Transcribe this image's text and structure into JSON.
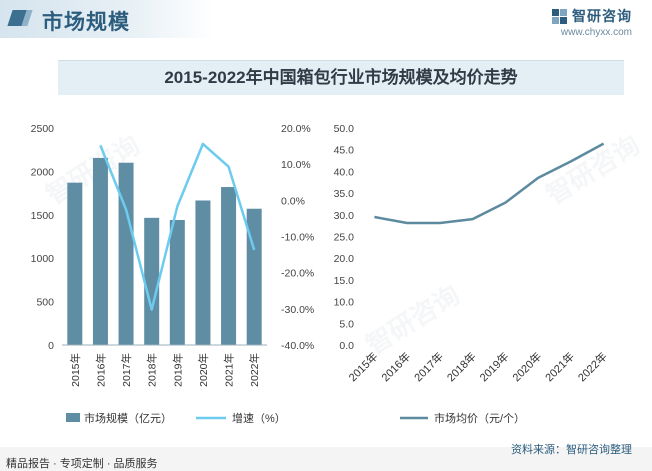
{
  "header": {
    "title": "市场规模",
    "logo_text": "智研咨询",
    "website": "www.chyxx.com"
  },
  "chart_title": "2015-2022年中国箱包行业市场规模及均价走势",
  "footer": {
    "left": "精品报告 · 专项定制 · 品质服务",
    "source": "资料来源：智研咨询整理"
  },
  "watermark_text": "智研咨询",
  "colors": {
    "brand": "#2c5d7e",
    "bar": "#5f8ea4",
    "growth_line": "#6ccbee",
    "price_line": "#5c8a9e",
    "title_band": "#e4eef5"
  },
  "chart_data": [
    {
      "type": "bar",
      "categories": [
        "2015年",
        "2016年",
        "2017年",
        "2018年",
        "2019年",
        "2020年",
        "2021年",
        "2022年"
      ],
      "series": [
        {
          "name": "市场规模（亿元）",
          "type": "bar",
          "axis": "left",
          "values": [
            1870,
            2155,
            2100,
            1465,
            1440,
            1665,
            1820,
            1570
          ]
        },
        {
          "name": "增速（%）",
          "type": "line",
          "axis": "right",
          "values": [
            null,
            15.2,
            -2.6,
            -30.2,
            -1.7,
            15.6,
            9.3,
            -13.7
          ]
        }
      ],
      "y_left": {
        "min": 0,
        "max": 2500,
        "ticks": [
          "0",
          "500",
          "1000",
          "1500",
          "2000",
          "2500"
        ]
      },
      "y_right": {
        "min": -40,
        "max": 20,
        "ticks": [
          "-40.0%",
          "-30.0%",
          "-20.0%",
          "-10.0%",
          "0.0%",
          "10.0%",
          "20.0%"
        ]
      },
      "legend": [
        "市场规模（亿元）",
        "增速（%）"
      ],
      "legend_position": "bottom",
      "grid": false
    },
    {
      "type": "line",
      "categories": [
        "2015年",
        "2016年",
        "2017年",
        "2018年",
        "2019年",
        "2020年",
        "2021年",
        "2022年"
      ],
      "series": [
        {
          "name": "市场均价（元/个）",
          "values": [
            29.5,
            28.1,
            28.1,
            29.0,
            32.8,
            38.5,
            42.3,
            46.4
          ]
        }
      ],
      "y": {
        "min": 0,
        "max": 50,
        "ticks": [
          "0.0",
          "5.0",
          "10.0",
          "15.0",
          "20.0",
          "25.0",
          "30.0",
          "35.0",
          "40.0",
          "45.0",
          "50.0"
        ]
      },
      "legend": [
        "市场均价（元/个）"
      ],
      "legend_position": "bottom",
      "grid": false
    }
  ]
}
